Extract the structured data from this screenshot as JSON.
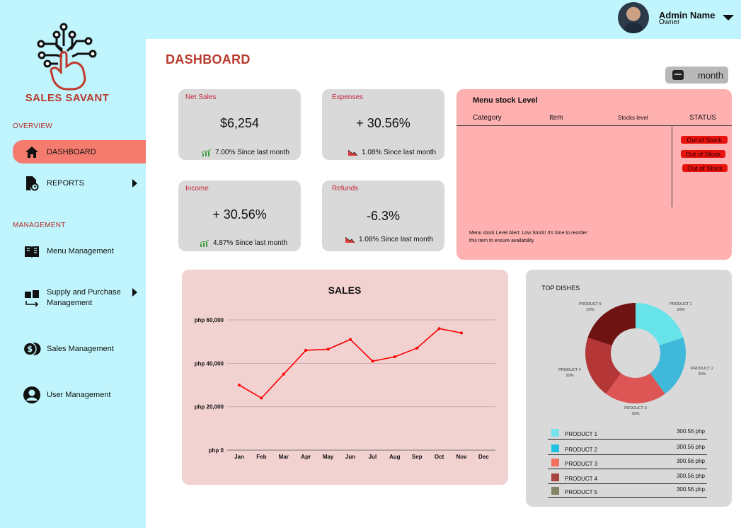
{
  "brand": {
    "name": "SALES SAVANT"
  },
  "sidebar": {
    "overview_label": "OVERVIEW",
    "management_label": "MANAGEMENT",
    "items": [
      {
        "label": "DASHBOARD",
        "icon": "home-icon"
      },
      {
        "label": "REPORTS",
        "icon": "report-icon"
      },
      {
        "label": "Menu Management",
        "icon": "menu-book-icon"
      },
      {
        "label": "Supply and Purchase Management",
        "icon": "supply-icon"
      },
      {
        "label": "Sales Management",
        "icon": "coins-icon"
      },
      {
        "label": "User Management",
        "icon": "user-icon"
      }
    ]
  },
  "header": {
    "admin_name": "Admin Name",
    "admin_role": "Owner",
    "page_title": "DASHBOARD",
    "period_label": "month"
  },
  "stats": [
    {
      "label": "Net Sales",
      "value": "$6,254",
      "change": "7.00% Since last month",
      "trend": "up"
    },
    {
      "label": "Expenses",
      "value": "+ 30.56%",
      "change": "1.08% Since last month",
      "trend": "down"
    },
    {
      "label": "Income",
      "value": "+ 30.56%",
      "change": "4.87% Since last month",
      "trend": "up"
    },
    {
      "label": "Refunds",
      "value": "-6.3%",
      "change": "1.08% Since last month",
      "trend": "down"
    }
  ],
  "stock": {
    "title": "Menu stock Level",
    "columns": [
      "Category",
      "Item",
      "Stocks level",
      "STATUS"
    ],
    "statuses": [
      "Out of Stock",
      "Out of Stock",
      "Out of Stock"
    ],
    "alert_line1": "Menu stock Level Alert: Low Stock! It's time to reorder",
    "alert_line2": "this item to ensure availability"
  },
  "chart_data": [
    {
      "type": "line",
      "title": "SALES",
      "categories": [
        "Jan",
        "Feb",
        "Mar",
        "Apr",
        "May",
        "Jun",
        "Jul",
        "Aug",
        "Sep",
        "Oct",
        "Nov",
        "Dec"
      ],
      "values": [
        30000,
        24000,
        35000,
        46000,
        46500,
        51000,
        41000,
        43000,
        47000,
        56000,
        54000,
        null
      ],
      "y_ticks": [
        "php 0",
        "php 20,000",
        "php 40,000",
        "php 60,000"
      ],
      "ylim": [
        0,
        60000
      ],
      "color": "#ff0000",
      "grid": true
    },
    {
      "type": "pie",
      "title": "TOP DISHES",
      "slices": [
        {
          "name": "PRODUCT 1",
          "pct_label": "20%",
          "value": 20,
          "color": "#67e4ea",
          "amount": "300.56 php"
        },
        {
          "name": "PRODUCT 2",
          "pct_label": "20%",
          "value": 20,
          "color": "#40b8da",
          "amount": "300.56 php"
        },
        {
          "name": "PRODUCT 3",
          "pct_label": "20%",
          "value": 20,
          "color": "#de5555",
          "amount": "300.56 php"
        },
        {
          "name": "PRODUCT 4",
          "pct_label": "20%",
          "value": 20,
          "color": "#b43636",
          "amount": "300.56 php"
        },
        {
          "name": "PRODUCT 5",
          "pct_label": "20%",
          "value": 20,
          "color": "#6e1212",
          "amount": "300.56 php"
        }
      ],
      "legend_colors": [
        "#76e3ea",
        "#1fc2df",
        "#f36f5f",
        "#a9413c",
        "#838566"
      ]
    }
  ]
}
